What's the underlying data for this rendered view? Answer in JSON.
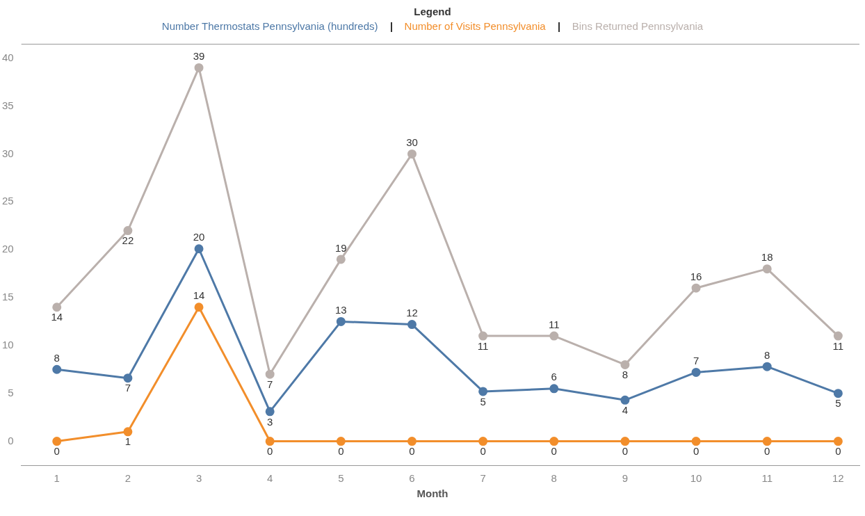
{
  "chart_data": {
    "type": "line",
    "legend_title": "Legend",
    "xlabel": "Month",
    "x": [
      1,
      2,
      3,
      4,
      5,
      6,
      7,
      8,
      9,
      10,
      11,
      12
    ],
    "xlim": [
      0.5,
      12.3
    ],
    "xticks": [
      1,
      2,
      3,
      4,
      5,
      6,
      7,
      8,
      9,
      10,
      11,
      12
    ],
    "ylim": [
      -2.5,
      41.5
    ],
    "yticks": [
      0,
      5,
      10,
      15,
      20,
      25,
      30,
      35,
      40
    ],
    "grid": false,
    "legend": "top",
    "marker": "circle",
    "line_style": "solid",
    "series": [
      {
        "name": "Number Thermostats Pennsylvania (hundreds)",
        "color": "#4e79a7",
        "values": [
          7.5,
          6.6,
          20.1,
          3.1,
          12.5,
          12.2,
          5.2,
          5.5,
          4.3,
          7.2,
          7.8,
          5.0
        ],
        "value_labels": [
          "8",
          "7",
          "20",
          "3",
          "13",
          "12",
          "5",
          "6",
          "4",
          "7",
          "8",
          "5"
        ]
      },
      {
        "name": "Number of Visits Pennsylvania",
        "color": "#f28e2b",
        "values": [
          0,
          1,
          14,
          0,
          0,
          0,
          0,
          0,
          0,
          0,
          0,
          0
        ],
        "value_labels": [
          "0",
          "1",
          "14",
          "0",
          "0",
          "0",
          "0",
          "0",
          "0",
          "0",
          "0",
          "0"
        ]
      },
      {
        "name": "Bins Returned Pennsylvania",
        "color": "#bab0ac",
        "values": [
          14,
          22,
          39,
          7,
          19,
          30,
          11,
          11,
          8,
          16,
          18,
          11
        ],
        "value_labels": [
          "14",
          "22",
          "39",
          "7",
          "19",
          "30",
          "11",
          "11",
          "8",
          "16",
          "18",
          "11"
        ]
      }
    ]
  }
}
